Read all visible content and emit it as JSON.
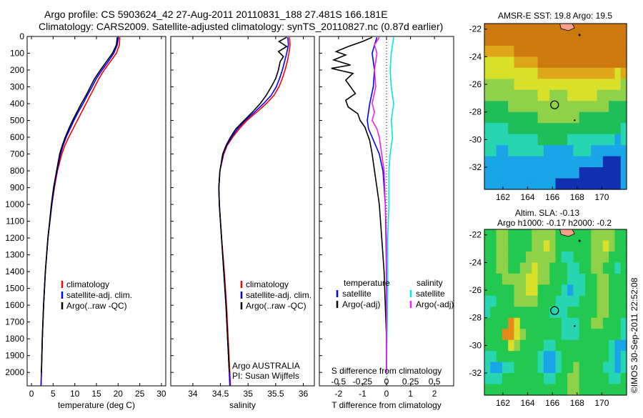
{
  "header": {
    "line1": "Argo profile: CS 5903624_42 27-Aug-2011 20110831_188 27.481S 166.181E",
    "line2": "Climatology: CARS2009. Satellite-adjusted climatology: synTS_20110827.nc (0.87d earlier)"
  },
  "colors": {
    "climatology": "#ff0000",
    "satellite": "#0000ff",
    "argo": "#000000",
    "sal_satellite": "#00e5e5",
    "sal_argo": "#ee22ee"
  },
  "chart_data": [
    {
      "id": "temperature",
      "type": "line",
      "xlabel": "temperature (deg C)",
      "ylim": [
        0,
        2080
      ],
      "xlim": [
        -1,
        31
      ],
      "xticks": [
        0,
        5,
        10,
        15,
        20,
        25,
        30
      ],
      "yticks": [
        0,
        100,
        200,
        300,
        400,
        500,
        600,
        700,
        800,
        900,
        1000,
        1100,
        1200,
        1300,
        1400,
        1500,
        1600,
        1700,
        1800,
        1900,
        2000
      ],
      "legend": [
        "climatology",
        "satellite-adj. clim.",
        "Argo(..raw -QC)"
      ],
      "series": [
        {
          "name": "climatology",
          "color": "#ff0000",
          "depth": [
            5,
            50,
            100,
            150,
            200,
            250,
            300,
            350,
            400,
            450,
            500,
            550,
            600,
            650,
            700,
            800,
            900,
            1000,
            1200,
            1400,
            1600,
            1800,
            2000,
            2080
          ],
          "values": [
            20.4,
            20.3,
            19.6,
            18.2,
            16.8,
            15.6,
            14.6,
            13.6,
            12.6,
            11.6,
            10.6,
            9.6,
            8.6,
            7.7,
            7.0,
            6.0,
            5.3,
            4.7,
            3.8,
            3.2,
            2.8,
            2.5,
            2.3,
            2.2
          ]
        },
        {
          "name": "satellite-adj. clim.",
          "color": "#0000ff",
          "depth": [
            5,
            50,
            100,
            150,
            200,
            250,
            300,
            350,
            400,
            450,
            500,
            550,
            600,
            650,
            700,
            800,
            900,
            1000,
            1200,
            1400,
            1600,
            1800,
            2000,
            2080
          ],
          "values": [
            20.1,
            19.8,
            19.0,
            17.7,
            16.3,
            15.0,
            14.0,
            12.9,
            11.9,
            10.8,
            9.8,
            8.9,
            8.0,
            7.3,
            6.7,
            5.9,
            5.2,
            4.7,
            3.8,
            3.2,
            2.8,
            2.5,
            2.3,
            2.2
          ]
        },
        {
          "name": "Argo(..raw -QC)",
          "color": "#000000",
          "depth": [
            5,
            50,
            100,
            150,
            200,
            250,
            300,
            350,
            400,
            450,
            500,
            550,
            600,
            650,
            700,
            800,
            900,
            1000,
            1200,
            1400,
            1600,
            1800,
            2000
          ],
          "values": [
            19.8,
            19.6,
            18.7,
            17.3,
            15.9,
            14.6,
            13.6,
            12.6,
            11.5,
            10.5,
            9.5,
            8.6,
            7.8,
            7.1,
            6.5,
            5.8,
            5.1,
            4.6,
            3.8,
            3.2,
            2.8,
            2.5,
            2.3
          ]
        }
      ]
    },
    {
      "id": "salinity",
      "type": "line",
      "xlabel": "salinity",
      "ylim": [
        0,
        2080
      ],
      "xlim": [
        33.6,
        36.2
      ],
      "xticks": [
        34,
        34.5,
        35,
        35.5,
        36
      ],
      "legend": [
        "climatology",
        "satellite-adj. clim.",
        "Argo(..raw -QC)"
      ],
      "annotation": [
        "Argo AUSTRALIA",
        "PI: Susan Wijffels"
      ],
      "series": [
        {
          "name": "climatology",
          "color": "#ff0000",
          "depth": [
            5,
            50,
            100,
            150,
            200,
            250,
            300,
            350,
            400,
            450,
            500,
            550,
            600,
            650,
            700,
            800,
            900,
            1000,
            1200,
            1400,
            1600,
            1800,
            2000,
            2080
          ],
          "values": [
            35.75,
            35.76,
            35.74,
            35.71,
            35.67,
            35.62,
            35.56,
            35.47,
            35.33,
            35.16,
            34.98,
            34.84,
            34.72,
            34.62,
            34.56,
            34.49,
            34.47,
            34.48,
            34.52,
            34.57,
            34.61,
            34.64,
            34.67,
            34.68
          ]
        },
        {
          "name": "satellite-adj. clim.",
          "color": "#0000ff",
          "depth": [
            5,
            50,
            100,
            150,
            200,
            250,
            300,
            350,
            400,
            450,
            500,
            550,
            600,
            650,
            700,
            800,
            900,
            1000,
            1200,
            1400,
            1600,
            1800,
            2000,
            2080
          ],
          "values": [
            35.72,
            35.73,
            35.7,
            35.66,
            35.62,
            35.57,
            35.51,
            35.42,
            35.28,
            35.12,
            34.95,
            34.81,
            34.7,
            34.61,
            34.55,
            34.49,
            34.47,
            34.48,
            34.52,
            34.56,
            34.6,
            34.63,
            34.66,
            34.67
          ]
        },
        {
          "name": "Argo(..raw -QC)",
          "color": "#000000",
          "depth": [
            5,
            30,
            60,
            90,
            120,
            150,
            200,
            250,
            300,
            350,
            400,
            450,
            500,
            550,
            600,
            650,
            700,
            800,
            900,
            1000,
            1200,
            1400,
            1600,
            1800,
            2000
          ],
          "values": [
            35.7,
            35.56,
            35.7,
            35.55,
            35.64,
            35.58,
            35.55,
            35.5,
            35.42,
            35.33,
            35.22,
            35.08,
            34.93,
            34.78,
            34.68,
            34.6,
            34.54,
            34.49,
            34.47,
            34.48,
            34.52,
            34.56,
            34.6,
            34.63,
            34.66
          ]
        }
      ]
    },
    {
      "id": "differences",
      "type": "line",
      "xlabel": "T difference from climatology",
      "toplabel": "S difference from climatology",
      "ylim": [
        0,
        2080
      ],
      "xlim": [
        -2.8,
        2.8
      ],
      "xticks": [
        -2,
        -1,
        0,
        1,
        2
      ],
      "sticks": [
        "-0.5",
        "-0.25",
        "0",
        "0.25",
        "0.5"
      ],
      "legend_left_title": "temperature",
      "legend_right_title": "salinity",
      "legend_left": [
        "satellite",
        "Argo(-adj)"
      ],
      "legend_right": [
        "satellite",
        "Argo(-adj)"
      ],
      "series": [
        {
          "name": "T satellite",
          "color": "#0000ff",
          "depth": [
            5,
            50,
            100,
            200,
            300,
            400,
            500,
            550,
            600,
            700,
            800,
            1000,
            1200,
            1500,
            1800,
            2000
          ],
          "values": [
            -0.4,
            -0.5,
            -0.6,
            -0.5,
            -0.55,
            -0.7,
            -0.8,
            -0.75,
            -0.6,
            -0.3,
            -0.15,
            -0.05,
            -0.02,
            0.0,
            0.0,
            0.0
          ]
        },
        {
          "name": "T Argo(-adj)",
          "color": "#000000",
          "depth": [
            5,
            30,
            60,
            90,
            110,
            140,
            170,
            190,
            220,
            260,
            300,
            340,
            380,
            420,
            460,
            500,
            540,
            580,
            620,
            700,
            800,
            900,
            1000,
            1200,
            1400,
            1600,
            1800,
            2000
          ],
          "values": [
            -0.6,
            -1.0,
            -1.6,
            -2.1,
            -1.7,
            -2.2,
            -1.5,
            -2.3,
            -1.4,
            -1.7,
            -1.5,
            -1.3,
            -1.7,
            -1.6,
            -1.2,
            -1.1,
            -0.9,
            -0.8,
            -0.7,
            -0.6,
            -0.5,
            -0.4,
            -0.3,
            -0.2,
            -0.1,
            -0.05,
            0.0,
            0.0
          ]
        },
        {
          "name": "S satellite",
          "color": "#00e5e5",
          "depth": [
            5,
            50,
            100,
            200,
            300,
            400,
            500,
            600,
            700,
            800,
            1000,
            1200,
            1500,
            1800,
            2000
          ],
          "values": [
            0.3,
            0.25,
            0.2,
            0.15,
            0.2,
            0.3,
            0.2,
            0.25,
            0.15,
            0.1,
            0.1,
            0.05,
            0.05,
            0.02,
            0.0
          ]
        },
        {
          "name": "S Argo(-adj)",
          "color": "#ee22ee",
          "depth": [
            5,
            50,
            100,
            200,
            300,
            400,
            450,
            500,
            550,
            600,
            700,
            800,
            1000,
            1200,
            1500,
            1800,
            2000
          ],
          "values": [
            -0.3,
            -0.5,
            -0.4,
            -0.5,
            -0.45,
            -0.6,
            -0.5,
            -0.6,
            -0.4,
            -0.3,
            -0.2,
            -0.1,
            -0.05,
            0.0,
            0.0,
            0.0,
            0.0
          ]
        }
      ]
    },
    {
      "id": "sst-map",
      "type": "heatmap",
      "title": "AMSR-E SST: 19.8 Argo: 19.5",
      "xlim": [
        160.5,
        172
      ],
      "ylim": [
        -33.6,
        -21.6
      ],
      "xticks": [
        162,
        164,
        166,
        168,
        170
      ],
      "yticks": [
        -22,
        -24,
        -26,
        -28,
        -30,
        -32
      ],
      "rows_top_to_bottom": [
        "hhhhhhhhhhhhhhhhhhhhhhhh",
        "hhhhhhhhhhhhhhhhhhhhhhhh",
        "ggggghhhhhhhhhhhhhhhhhhh",
        "fffffgggghhhhhhhhhhhhhhh",
        "fffffffffgggggggggggggfg",
        "eeeeeffffffffffffffffffe",
        "eeeeeeeeeffeeefffffeeeee",
        "ddddeeeeeeeeeeeeeeeeeddd",
        "dddddddddeeeeeeedddddddd",
        "ccccdddddddddddddddddddc",
        "cccccccccdddddccccccccbc",
        "ccbbccccccbbbbbcccbbbbbb",
        "bbbbbbbbbbbbbbbbbbbbaaab",
        "bbbbbbbbbbbbbbbbaaaaaaab",
        "bbbbbbbbbbbbaaaaaaaaaaab"
      ],
      "palette": {
        "a": "#1030b0",
        "b": "#1aa5e8",
        "c": "#27d6b0",
        "d": "#1fbe5a",
        "e": "#8fd24a",
        "f": "#d8e02a",
        "g": "#e0a61a",
        "h": "#cc7a0f"
      },
      "argo": [
        166.18,
        -27.48
      ]
    },
    {
      "id": "sla-map",
      "type": "heatmap",
      "title_line1": "Altim. SLA: -0.13",
      "title_line2": "Argo h1000: -0.17 h2000: -0.2",
      "xlim": [
        160.5,
        172
      ],
      "ylim": [
        -33.6,
        -21.6
      ],
      "xticks": [
        162,
        164,
        166,
        168,
        170
      ],
      "yticks": [
        -22,
        -24,
        -26,
        -28,
        -30,
        -32
      ],
      "rows_top_to_bottom": [
        "ddeeddddeeeeddddddeeeedd",
        "ddeeddddeefeddddddeefedd",
        "ddeedddeeeeedccdddeeeddd",
        "ddeeddeefeedddccddeeddcd",
        "dddeeeeffeedddcccddeeddd",
        "dddddeeffddddcbccddeeddd",
        "ccdddeeeedddccccdddeeddd",
        "cddddddddddcccdddddeeddd",
        "ddddgfdddddddcccddeedddc",
        "dddggfeddddddcccdddddddc",
        "ddddfeddddccdddddddddcbb",
        "ccdddddddcbbcddddddddcbc",
        "cbbccddddcbbcddeddddccbc",
        "cccdddddddccddeedddddccd",
        "ddddddddddddddeedddddddd"
      ],
      "palette": {
        "b": "#1aa5e8",
        "c": "#27d6b0",
        "d": "#22c850",
        "e": "#8fd24a",
        "f": "#d8e02a",
        "g": "#e58a18"
      },
      "argo": [
        166.18,
        -27.48
      ]
    }
  ],
  "credit": "©IMOS 30-Sep-2011 22:52:08"
}
